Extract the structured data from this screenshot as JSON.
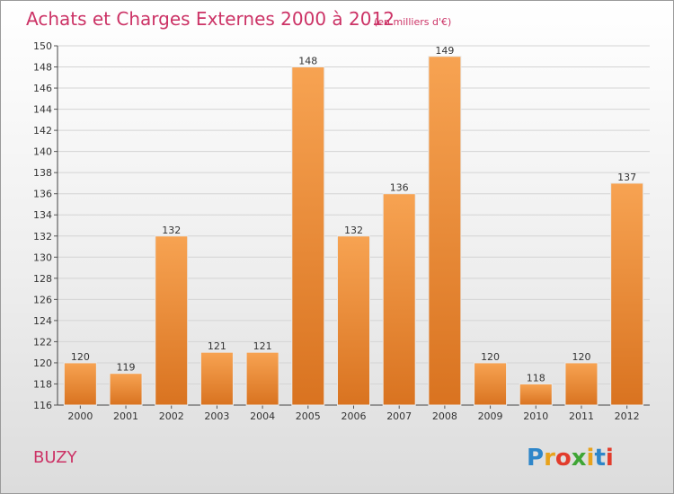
{
  "chart_data": {
    "type": "bar",
    "title": "Achats et Charges Externes 2000 à 2012",
    "subtitle": "(en milliers d'€)",
    "categories": [
      "2000",
      "2001",
      "2002",
      "2003",
      "2004",
      "2005",
      "2006",
      "2007",
      "2008",
      "2009",
      "2010",
      "2011",
      "2012"
    ],
    "values": [
      120,
      119,
      132,
      121,
      121,
      148,
      132,
      136,
      149,
      120,
      118,
      120,
      137
    ],
    "xlabel": "",
    "ylabel": "",
    "ylim": [
      116,
      150
    ],
    "yticks": [
      116,
      118,
      120,
      122,
      124,
      126,
      128,
      130,
      132,
      134,
      136,
      138,
      140,
      142,
      144,
      146,
      148,
      150
    ],
    "grid": true,
    "bar_color_top": "#f7a352",
    "bar_color_bottom": "#d97320"
  },
  "commune": "BUZY",
  "logo": {
    "text": "Proxiti",
    "letters": [
      "P",
      "r",
      "o",
      "x",
      "i",
      "t",
      "i"
    ],
    "colors": [
      "#2e86c9",
      "#e8a21b",
      "#e23c2c",
      "#3fa535",
      "#e8a21b",
      "#2e86c9",
      "#e23c2c"
    ]
  }
}
